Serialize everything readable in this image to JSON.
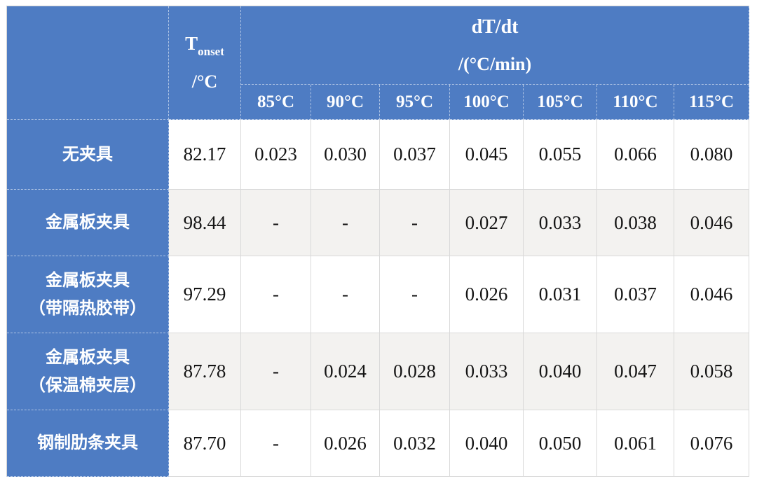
{
  "colors": {
    "header_blue": "#4e7cc3",
    "stripe_gray": "#f3f2f0",
    "grid_line": "#d9d9d9",
    "value_text": "#141414",
    "header_text": "#ffffff"
  },
  "table": {
    "corner_label": "",
    "tonset_header": {
      "symbol": "T",
      "subscript": "onset",
      "unit_line": "/°C"
    },
    "dtdt_header": {
      "line1": "dT/dt",
      "line2": "/(°C/min)"
    },
    "temp_columns": [
      "85°C",
      "90°C",
      "95°C",
      "100°C",
      "105°C",
      "110°C",
      "115°C"
    ],
    "rows": [
      {
        "label_lines": [
          "无夹具"
        ],
        "tonset": "82.17",
        "values": [
          "0.023",
          "0.030",
          "0.037",
          "0.045",
          "0.055",
          "0.066",
          "0.080"
        ],
        "striped": false
      },
      {
        "label_lines": [
          "金属板夹具"
        ],
        "tonset": "98.44",
        "values": [
          "-",
          "-",
          "-",
          "0.027",
          "0.033",
          "0.038",
          "0.046"
        ],
        "striped": true
      },
      {
        "label_lines": [
          "金属板夹具",
          "（带隔热胶带）"
        ],
        "tonset": "97.29",
        "values": [
          "-",
          "-",
          "-",
          "0.026",
          "0.031",
          "0.037",
          "0.046"
        ],
        "striped": false
      },
      {
        "label_lines": [
          "金属板夹具",
          "（保温棉夹层）"
        ],
        "tonset": "87.78",
        "values": [
          "-",
          "0.024",
          "0.028",
          "0.033",
          "0.040",
          "0.047",
          "0.058"
        ],
        "striped": true
      },
      {
        "label_lines": [
          "钢制肋条夹具"
        ],
        "tonset": "87.70",
        "values": [
          "-",
          "0.026",
          "0.032",
          "0.040",
          "0.050",
          "0.061",
          "0.076"
        ],
        "striped": false
      }
    ]
  },
  "chart_data": {
    "type": "table",
    "first_col_header": "T_onset /°C",
    "col_group_header": "dT/dt /(°C/min)",
    "temp_columns_c": [
      85,
      90,
      95,
      100,
      105,
      110,
      115
    ],
    "rows": [
      {
        "label": "无夹具",
        "t_onset_c": 82.17,
        "dt_dt": [
          0.023,
          0.03,
          0.037,
          0.045,
          0.055,
          0.066,
          0.08
        ]
      },
      {
        "label": "金属板夹具",
        "t_onset_c": 98.44,
        "dt_dt": [
          null,
          null,
          null,
          0.027,
          0.033,
          0.038,
          0.046
        ]
      },
      {
        "label": "金属板夹具（带隔热胶带）",
        "t_onset_c": 97.29,
        "dt_dt": [
          null,
          null,
          null,
          0.026,
          0.031,
          0.037,
          0.046
        ]
      },
      {
        "label": "金属板夹具（保温棉夹层）",
        "t_onset_c": 87.78,
        "dt_dt": [
          null,
          0.024,
          0.028,
          0.033,
          0.04,
          0.047,
          0.058
        ]
      },
      {
        "label": "钢制肋条夹具",
        "t_onset_c": 87.7,
        "dt_dt": [
          null,
          0.026,
          0.032,
          0.04,
          0.05,
          0.061,
          0.076
        ]
      }
    ]
  }
}
